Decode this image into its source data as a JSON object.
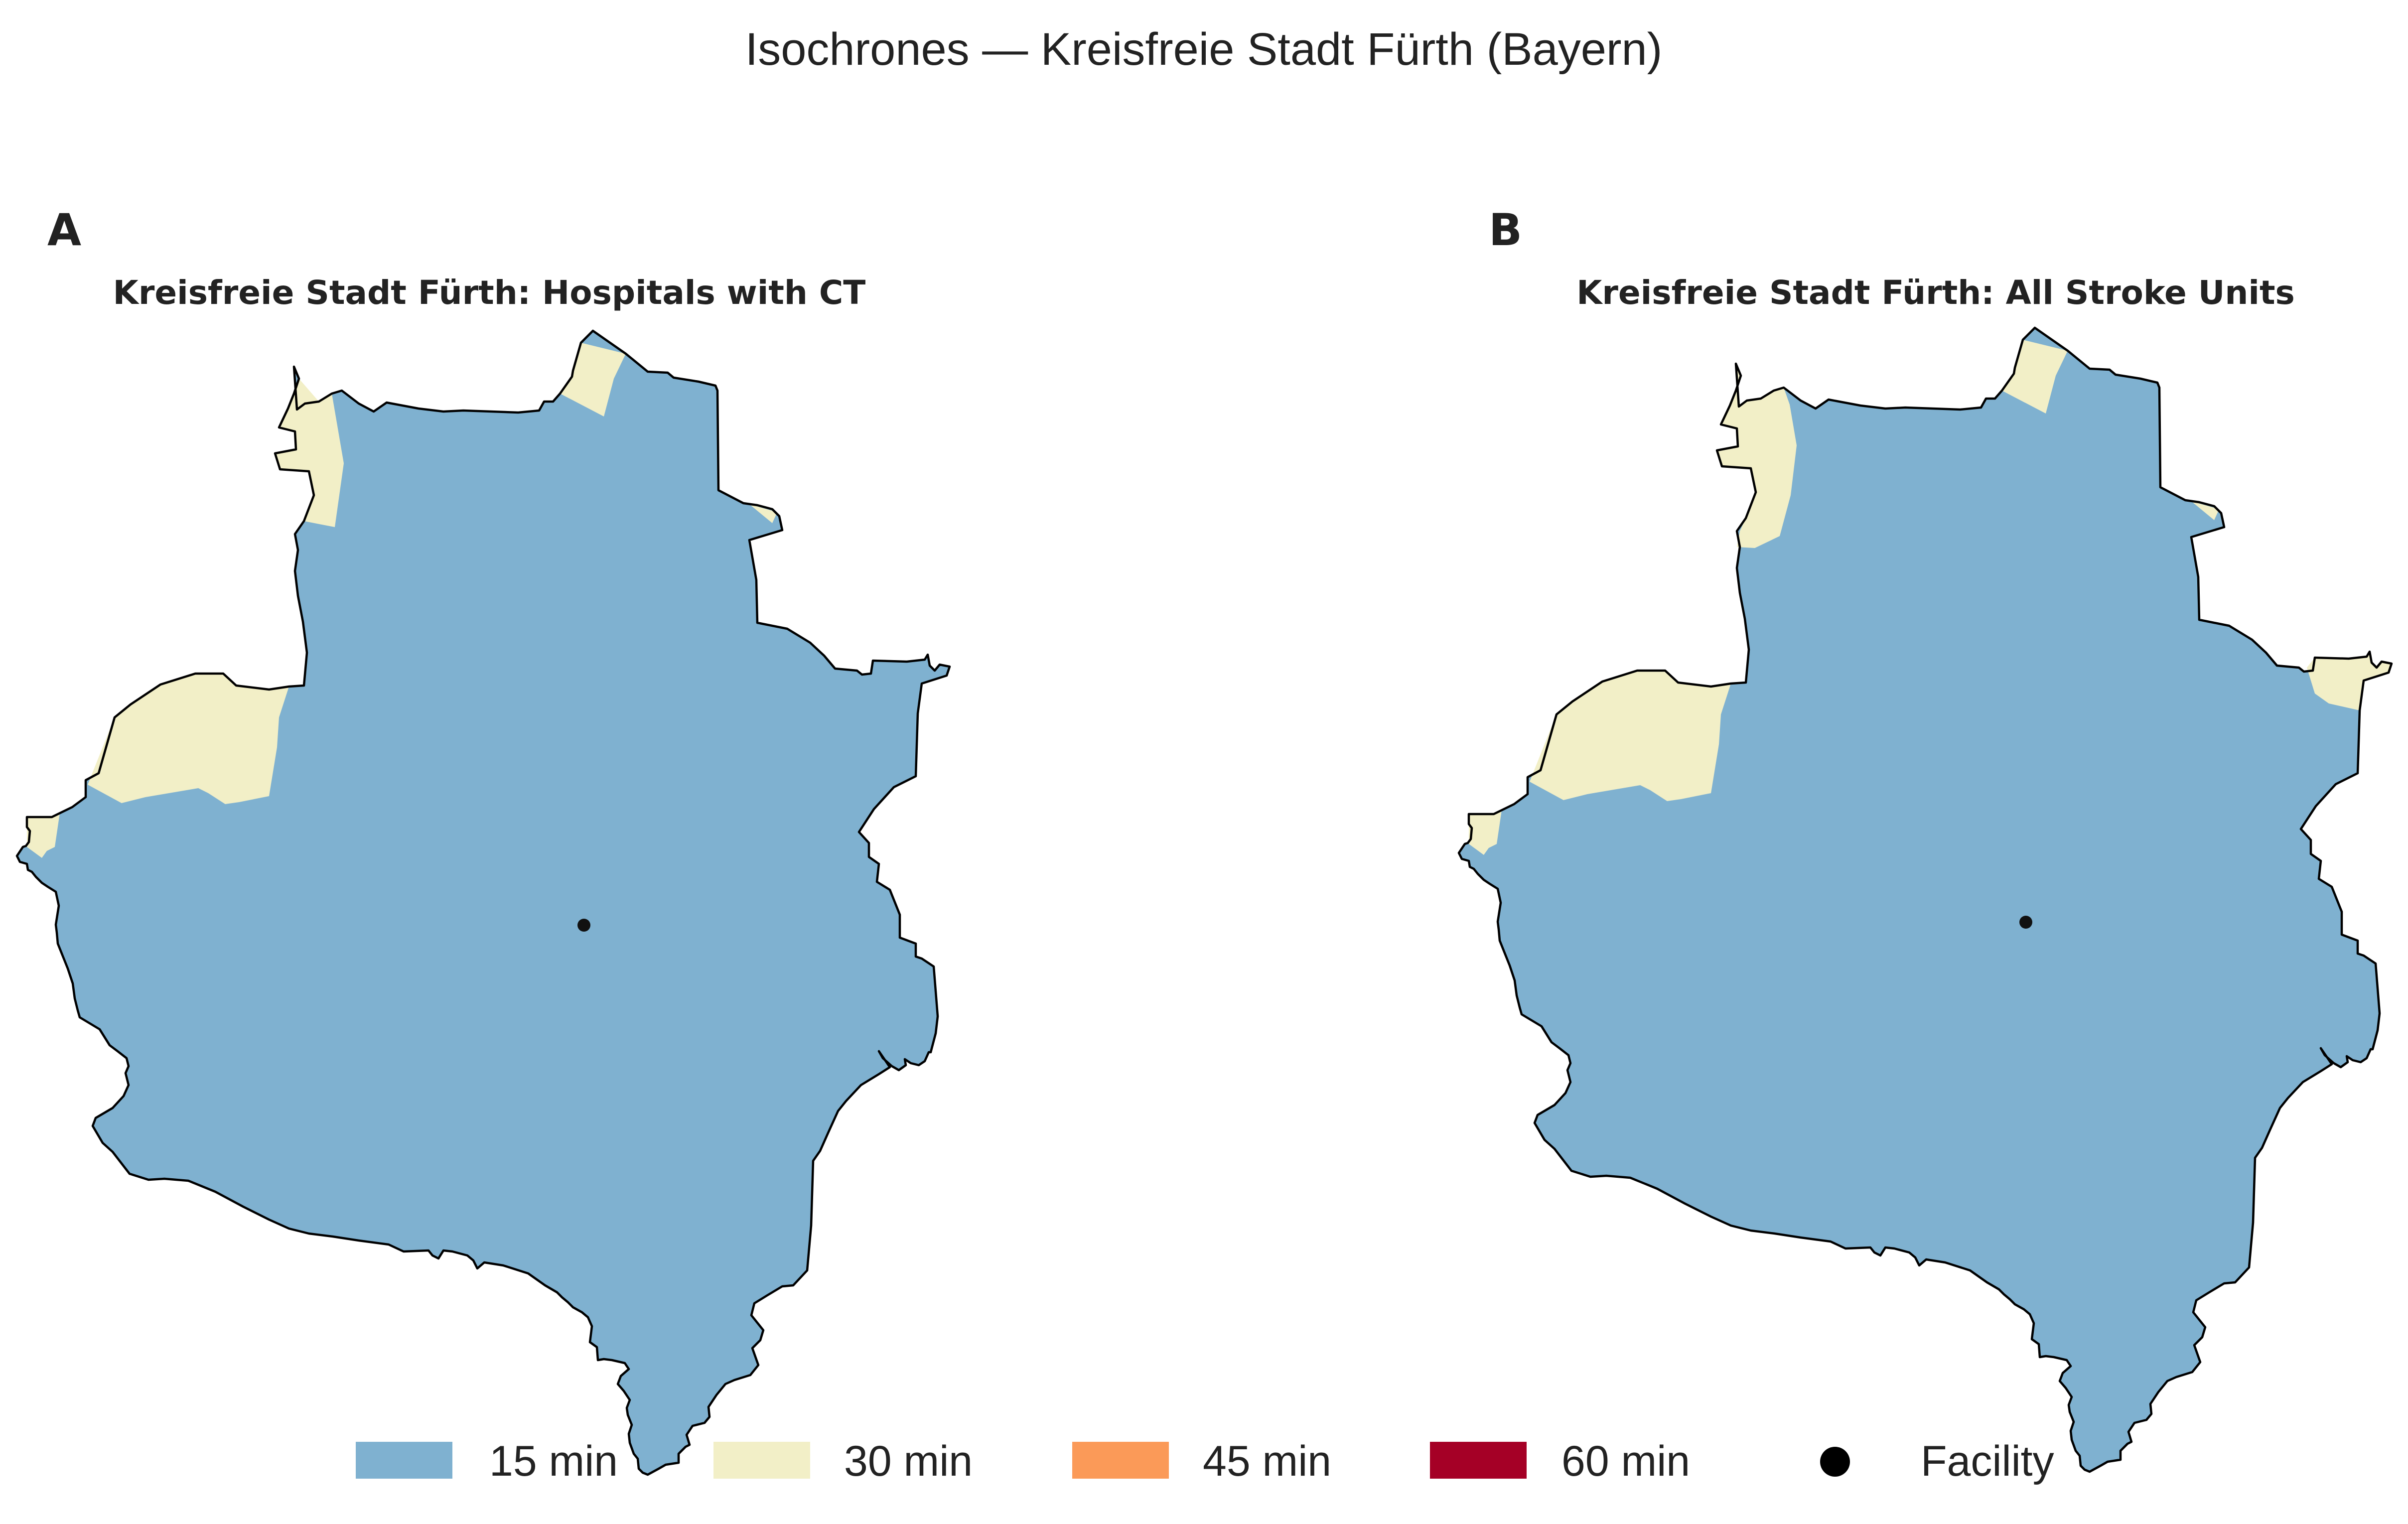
{
  "title": "Isochrones — Kreisfreie Stadt Fürth (Bayern)",
  "panels": [
    {
      "letter": "A",
      "title": "Kreisfreie Stadt Fürth: Hospitals with CT"
    },
    {
      "letter": "B",
      "title": "Kreisfreie Stadt Fürth: All Stroke Units"
    }
  ],
  "legend": {
    "items": [
      {
        "label": "15 min",
        "color": "#7fb1d0"
      },
      {
        "label": "30 min",
        "color": "#f2efc7"
      },
      {
        "label": "45 min",
        "color": "#fb9a58"
      },
      {
        "label": "60 min",
        "color": "#a50026"
      },
      {
        "label": "Facility",
        "color": "#000000",
        "icon": "filled-circle"
      }
    ]
  }
}
